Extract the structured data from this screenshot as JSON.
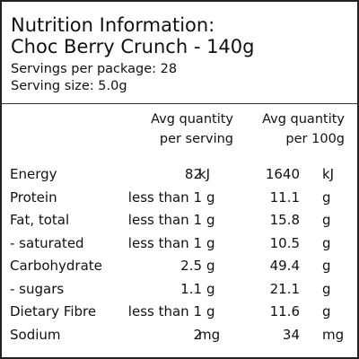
{
  "header": {
    "title": [
      "Nutrition Information:",
      "Choc Berry Crunch - 140g"
    ],
    "servings_per_package": "Servings per package: 28",
    "serving_size": "Serving size: 5.0g"
  },
  "table": {
    "columns": [
      [
        "Avg quantity",
        "per serving"
      ],
      [
        "Avg quantity",
        "per 100g"
      ]
    ],
    "rows": [
      [
        "Energy",
        "82",
        "kJ",
        "1640",
        "kJ"
      ],
      [
        "Protein",
        "less than 1",
        "g",
        "11.1",
        "g"
      ],
      [
        "Fat, total",
        "less than 1",
        "g",
        "15.8",
        "g"
      ],
      [
        "- saturated",
        "less than 1",
        "g",
        "10.5",
        "g"
      ],
      [
        "Carbohydrate",
        "2.5",
        "g",
        "49.4",
        "g"
      ],
      [
        "- sugars",
        "1.1",
        "g",
        "21.1",
        "g"
      ],
      [
        "Dietary Fibre",
        "less than 1",
        "g",
        "11.6",
        "g"
      ],
      [
        "Sodium",
        "2",
        "mg",
        "34",
        "mg"
      ]
    ]
  }
}
